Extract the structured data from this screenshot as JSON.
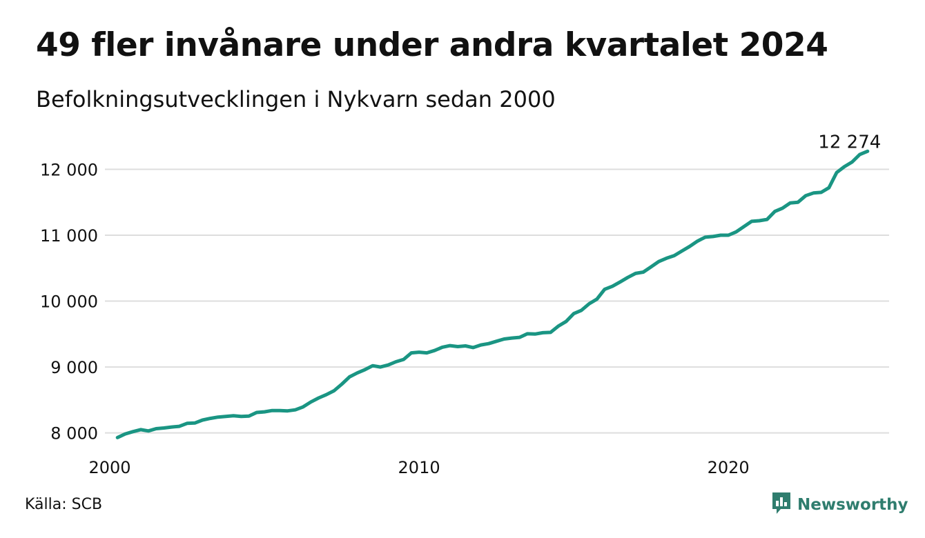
{
  "title": "49 fler invånare under andra kvartalet 2024",
  "subtitle": "Befolkningsutvecklingen i Nykvarn sedan 2000",
  "source": "Källa: SCB",
  "brand": {
    "name": "Newsworthy",
    "icon": "newsworthy-chart-logo-icon"
  },
  "colors": {
    "line": "#1a9583",
    "grid": "#dddddd",
    "brand": "#2f7d6e"
  },
  "chart_data": {
    "type": "line",
    "title": "49 fler invånare under andra kvartalet 2024",
    "subtitle": "Befolkningsutvecklingen i Nykvarn sedan 2000",
    "xlabel": "",
    "ylabel": "",
    "xlim": [
      2000.0,
      2024.75
    ],
    "ylim": [
      7850,
      12350
    ],
    "grid": true,
    "x_ticks": [
      {
        "value": 2000,
        "label": "2000"
      },
      {
        "value": 2010,
        "label": "2010"
      },
      {
        "value": 2020,
        "label": "2020"
      }
    ],
    "y_ticks": [
      {
        "value": 8000,
        "label": "8 000"
      },
      {
        "value": 9000,
        "label": "9 000"
      },
      {
        "value": 10000,
        "label": "10 000"
      },
      {
        "value": 11000,
        "label": "11 000"
      },
      {
        "value": 12000,
        "label": "12 000"
      }
    ],
    "end_label": "12 274",
    "series": [
      {
        "x": [
          2000.25,
          2000.5,
          2000.75,
          2001.0,
          2001.25,
          2001.5,
          2001.75,
          2002.0,
          2002.25,
          2002.5,
          2002.75,
          2003.0,
          2003.25,
          2003.5,
          2003.75,
          2004.0,
          2004.25,
          2004.5,
          2004.75,
          2005.0,
          2005.25,
          2005.5,
          2005.75,
          2006.0,
          2006.25,
          2006.5,
          2006.75,
          2007.0,
          2007.25,
          2007.5,
          2007.75,
          2008.0,
          2008.25,
          2008.5,
          2008.75,
          2009.0,
          2009.25,
          2009.5,
          2009.75,
          2010.0,
          2010.25,
          2010.5,
          2010.75,
          2011.0,
          2011.25,
          2011.5,
          2011.75,
          2012.0,
          2012.25,
          2012.5,
          2012.75,
          2013.0,
          2013.25,
          2013.5,
          2013.75,
          2014.0,
          2014.25,
          2014.5,
          2014.75,
          2015.0,
          2015.25,
          2015.5,
          2015.75,
          2016.0,
          2016.25,
          2016.5,
          2016.75,
          2017.0,
          2017.25,
          2017.5,
          2017.75,
          2018.0,
          2018.25,
          2018.5,
          2018.75,
          2019.0,
          2019.25,
          2019.5,
          2019.75,
          2020.0,
          2020.25,
          2020.5,
          2020.75,
          2021.0,
          2021.25,
          2021.5,
          2021.75,
          2022.0,
          2022.25,
          2022.5,
          2022.75,
          2023.0,
          2023.25,
          2023.5,
          2023.75,
          2024.0,
          2024.25,
          2024.5
        ],
        "y": [
          7930,
          7985,
          8020,
          8050,
          8030,
          8065,
          8075,
          8090,
          8100,
          8145,
          8150,
          8195,
          8220,
          8240,
          8250,
          8260,
          8250,
          8255,
          8310,
          8320,
          8340,
          8340,
          8335,
          8350,
          8395,
          8470,
          8530,
          8580,
          8640,
          8740,
          8850,
          8910,
          8960,
          9020,
          9000,
          9030,
          9080,
          9115,
          9215,
          9225,
          9215,
          9250,
          9300,
          9325,
          9310,
          9320,
          9295,
          9335,
          9355,
          9390,
          9425,
          9440,
          9450,
          9505,
          9500,
          9520,
          9525,
          9620,
          9690,
          9810,
          9860,
          9960,
          10030,
          10180,
          10225,
          10290,
          10360,
          10420,
          10440,
          10520,
          10600,
          10650,
          10690,
          10760,
          10830,
          10910,
          10970,
          10980,
          11000,
          11000,
          11050,
          11130,
          11210,
          11220,
          11240,
          11360,
          11410,
          11490,
          11500,
          11600,
          11640,
          11650,
          11720,
          11950,
          12040,
          12110,
          12225,
          12274
        ]
      }
    ]
  }
}
